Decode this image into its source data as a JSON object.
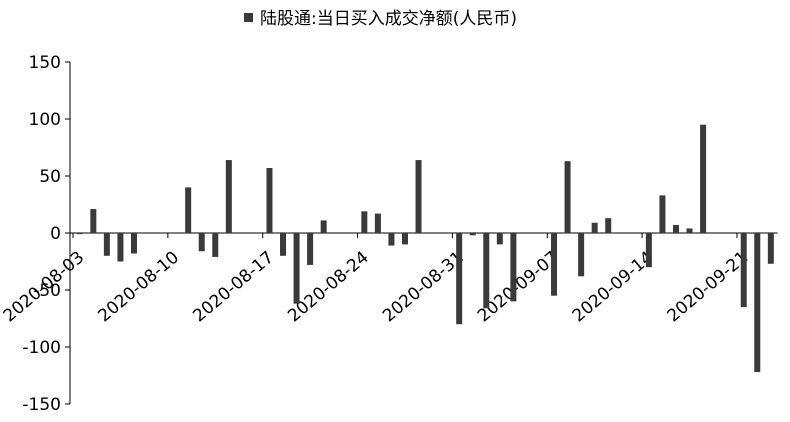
{
  "chart_data": {
    "type": "bar",
    "categories": [
      "2020-08-03",
      null,
      null,
      null,
      null,
      null,
      null,
      "2020-08-10",
      null,
      null,
      null,
      null,
      null,
      null,
      "2020-08-17",
      null,
      null,
      null,
      null,
      null,
      null,
      "2020-08-24",
      null,
      null,
      null,
      null,
      null,
      null,
      "2020-08-31",
      null,
      null,
      null,
      null,
      null,
      null,
      "2020-09-07",
      null,
      null,
      null,
      null,
      null,
      null,
      "2020-09-14",
      null,
      null,
      null,
      null,
      null,
      null,
      "2020-09-21",
      null,
      null
    ],
    "series": [
      {
        "name": "陆股通:当日买入成交净额(人民币)",
        "color": "#3a3a3a",
        "values": [
          -1,
          21,
          -20,
          -25,
          -18,
          null,
          null,
          null,
          40,
          -16,
          -21,
          64,
          null,
          null,
          57,
          -20,
          -62,
          -28,
          11,
          null,
          null,
          19,
          17,
          -11,
          -10,
          64,
          null,
          null,
          -80,
          -2,
          -66,
          -10,
          -60,
          null,
          null,
          -55,
          63,
          -38,
          9,
          13,
          null,
          null,
          -30,
          33,
          7,
          4,
          95,
          null,
          null,
          -65,
          -122,
          -27
        ]
      }
    ],
    "ylim": [
      -150,
      150
    ],
    "yticks": [
      -150,
      -100,
      -50,
      0,
      50,
      100,
      150
    ],
    "legend": "top"
  }
}
